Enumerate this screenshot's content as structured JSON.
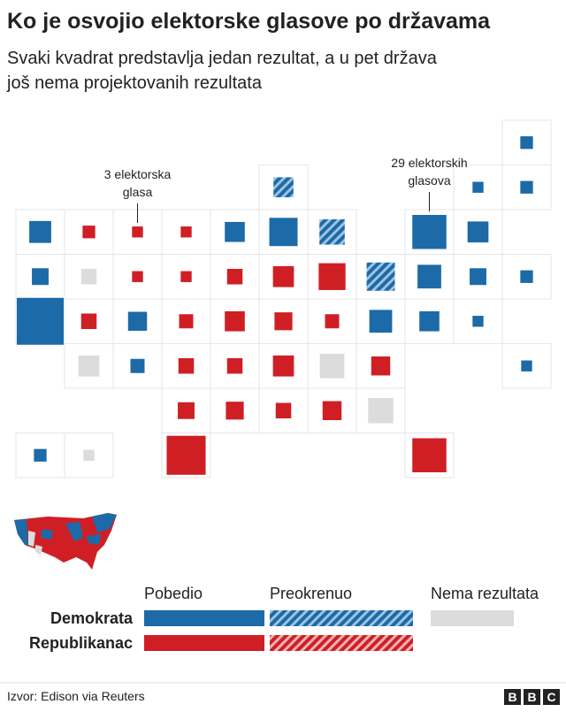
{
  "header": {
    "title": "Ko je osvojio elektorske glasove po državama",
    "subtitle_lines": [
      "Svaki kvadrat predstavlja jedan rezultat, a u pet država",
      "još nema projektovanih rezultata"
    ]
  },
  "chart_data": {
    "type": "tilemap",
    "size_scale": "area",
    "rows": [
      [
        null,
        null,
        null,
        null,
        null,
        null,
        null,
        null,
        null,
        null,
        {
          "votes": 4,
          "color": "#1c6aa8"
        }
      ],
      [
        null,
        null,
        null,
        null,
        null,
        {
          "votes": 10,
          "color": "#1c6aa8",
          "hatched": true
        },
        null,
        null,
        null,
        {
          "votes": 3,
          "color": "#1c6aa8"
        },
        {
          "votes": 4,
          "color": "#1c6aa8"
        }
      ],
      [
        {
          "votes": 12,
          "color": "#1c6aa8"
        },
        {
          "votes": 4,
          "color": "#cf1f25"
        },
        {
          "votes": 3,
          "color": "#cf1f25"
        },
        {
          "votes": 3,
          "color": "#cf1f25"
        },
        {
          "votes": 10,
          "color": "#1c6aa8"
        },
        {
          "votes": 20,
          "color": "#1c6aa8"
        },
        {
          "votes": 16,
          "color": "#1c6aa8",
          "hatched": true
        },
        null,
        {
          "votes": 29,
          "color": "#1c6aa8"
        },
        {
          "votes": 11,
          "color": "#1c6aa8"
        },
        null
      ],
      [
        {
          "votes": 7,
          "color": "#1c6aa8"
        },
        {
          "votes": 6,
          "color": "#dcdcdc"
        },
        {
          "votes": 3,
          "color": "#cf1f25"
        },
        {
          "votes": 3,
          "color": "#cf1f25"
        },
        {
          "votes": 6,
          "color": "#cf1f25"
        },
        {
          "votes": 11,
          "color": "#cf1f25"
        },
        {
          "votes": 18,
          "color": "#cf1f25"
        },
        {
          "votes": 20,
          "color": "#1c6aa8",
          "hatched": true
        },
        {
          "votes": 14,
          "color": "#1c6aa8"
        },
        {
          "votes": 7,
          "color": "#1c6aa8"
        },
        {
          "votes": 4,
          "color": "#1c6aa8"
        }
      ],
      [
        {
          "votes": 55,
          "color": "#1c6aa8"
        },
        {
          "votes": 6,
          "color": "#cf1f25"
        },
        {
          "votes": 9,
          "color": "#1c6aa8"
        },
        {
          "votes": 5,
          "color": "#cf1f25"
        },
        {
          "votes": 10,
          "color": "#cf1f25"
        },
        {
          "votes": 8,
          "color": "#cf1f25"
        },
        {
          "votes": 5,
          "color": "#cf1f25"
        },
        {
          "votes": 13,
          "color": "#1c6aa8"
        },
        {
          "votes": 10,
          "color": "#1c6aa8"
        },
        {
          "votes": 3,
          "color": "#1c6aa8"
        },
        null
      ],
      [
        null,
        {
          "votes": 11,
          "color": "#dcdcdc"
        },
        {
          "votes": 5,
          "color": "#1c6aa8"
        },
        {
          "votes": 6,
          "color": "#cf1f25"
        },
        {
          "votes": 6,
          "color": "#cf1f25"
        },
        {
          "votes": 11,
          "color": "#cf1f25"
        },
        {
          "votes": 15,
          "color": "#dcdcdc"
        },
        {
          "votes": 9,
          "color": "#cf1f25"
        },
        null,
        null,
        {
          "votes": 3,
          "color": "#1c6aa8"
        }
      ],
      [
        null,
        null,
        null,
        {
          "votes": 7,
          "color": "#cf1f25"
        },
        {
          "votes": 8,
          "color": "#cf1f25"
        },
        {
          "votes": 6,
          "color": "#cf1f25"
        },
        {
          "votes": 9,
          "color": "#cf1f25"
        },
        {
          "votes": 16,
          "color": "#dcdcdc"
        },
        null,
        null,
        null
      ],
      [
        {
          "votes": 4,
          "color": "#1c6aa8"
        },
        {
          "votes": 3,
          "color": "#dcdcdc"
        },
        null,
        {
          "votes": 38,
          "color": "#cf1f25"
        },
        null,
        null,
        null,
        null,
        {
          "votes": 29,
          "color": "#cf1f25"
        },
        null,
        null
      ]
    ],
    "annotations": [
      {
        "lines": [
          "3 elektorska",
          "glasa"
        ],
        "row": 2,
        "col": 2
      },
      {
        "lines": [
          "29 elektorskih",
          "glasova"
        ],
        "row": 2,
        "col": 8
      }
    ]
  },
  "legend": {
    "columns": [
      "Pobedio",
      "Preokrenuo",
      "Nema rezultata"
    ],
    "rows": [
      {
        "label": "Demokrata",
        "color": "#1c6aa8"
      },
      {
        "label": "Republikanac",
        "color": "#cf1f25"
      }
    ],
    "no_result_color": "#dcdcdc"
  },
  "footer": {
    "source": "Izvor: Edison via Reuters",
    "logo": [
      "B",
      "B",
      "C"
    ]
  }
}
